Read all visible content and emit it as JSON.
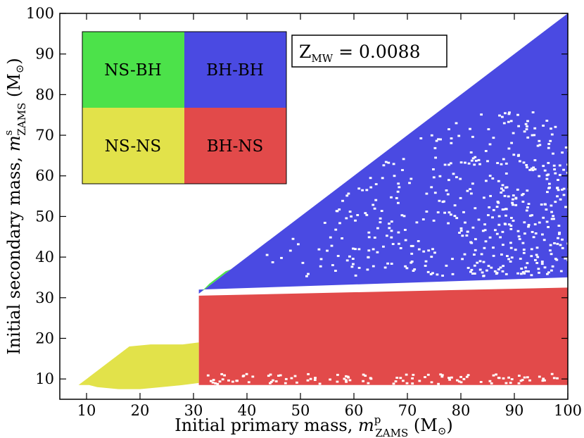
{
  "chart_data": {
    "type": "heatmap",
    "xlabel": "Initial primary mass, m^p_ZAMS (M⊙)",
    "ylabel": "Initial secondary mass, m^s_ZAMS (M⊙)",
    "xlabel_parts": {
      "main": "Initial primary mass, ",
      "var": "m",
      "sup": "p",
      "sub": "ZAMS",
      "unit": " (M",
      "unit_sub": "⊙",
      "close": ")"
    },
    "ylabel_parts": {
      "main": "Initial secondary mass, ",
      "var": "m",
      "sup": "s",
      "sub": "ZAMS",
      "unit": " (M",
      "unit_sub": "⊙",
      "close": ")"
    },
    "xlim": [
      5,
      100
    ],
    "ylim": [
      5,
      100
    ],
    "x_ticks": [
      10,
      20,
      30,
      40,
      50,
      60,
      70,
      80,
      90,
      100
    ],
    "y_ticks": [
      10,
      20,
      30,
      40,
      50,
      60,
      70,
      80,
      90,
      100
    ],
    "annotation": "Z_MW = 0.0088",
    "annotation_parts": {
      "main": "Z",
      "sub": "MW",
      "rest": " = 0.0088"
    },
    "legend": [
      {
        "label": "NS-BH",
        "color": "#4ce24a"
      },
      {
        "label": "BH-BH",
        "color": "#4a4ae2"
      },
      {
        "label": "NS-NS",
        "color": "#e2e24a"
      },
      {
        "label": "BH-NS",
        "color": "#e24a4a"
      }
    ],
    "regions": [
      {
        "name": "BH-BH",
        "color": "#4a4ae2",
        "polygon_xy": [
          [
            31,
            31
          ],
          [
            100,
            100
          ],
          [
            100,
            35
          ],
          [
            31,
            32
          ]
        ]
      },
      {
        "name": "BH-NS",
        "color": "#e24a4a",
        "polygon_xy": [
          [
            31,
            8.5
          ],
          [
            100,
            8.5
          ],
          [
            100,
            32.5
          ],
          [
            31,
            30.5
          ]
        ]
      },
      {
        "name": "NS-NS",
        "color": "#e2e24a",
        "polygon_xy": [
          [
            8.5,
            8.5
          ],
          [
            10.5,
            8.5
          ],
          [
            12,
            8
          ],
          [
            16,
            7.5
          ],
          [
            20,
            7.5
          ],
          [
            24,
            8
          ],
          [
            28,
            8.5
          ],
          [
            31,
            9
          ],
          [
            31,
            19
          ],
          [
            28,
            18.5
          ],
          [
            22,
            18.5
          ],
          [
            18,
            18
          ],
          [
            15,
            15
          ],
          [
            12,
            12
          ],
          [
            10,
            10
          ]
        ]
      },
      {
        "name": "NS-BH",
        "color": "#4ce24a",
        "polygon_xy": [
          [
            31.5,
            31.5
          ],
          [
            35,
            35
          ],
          [
            37,
            37
          ],
          [
            36,
            36.5
          ],
          [
            33,
            33.5
          ]
        ]
      }
    ],
    "grid": false
  }
}
